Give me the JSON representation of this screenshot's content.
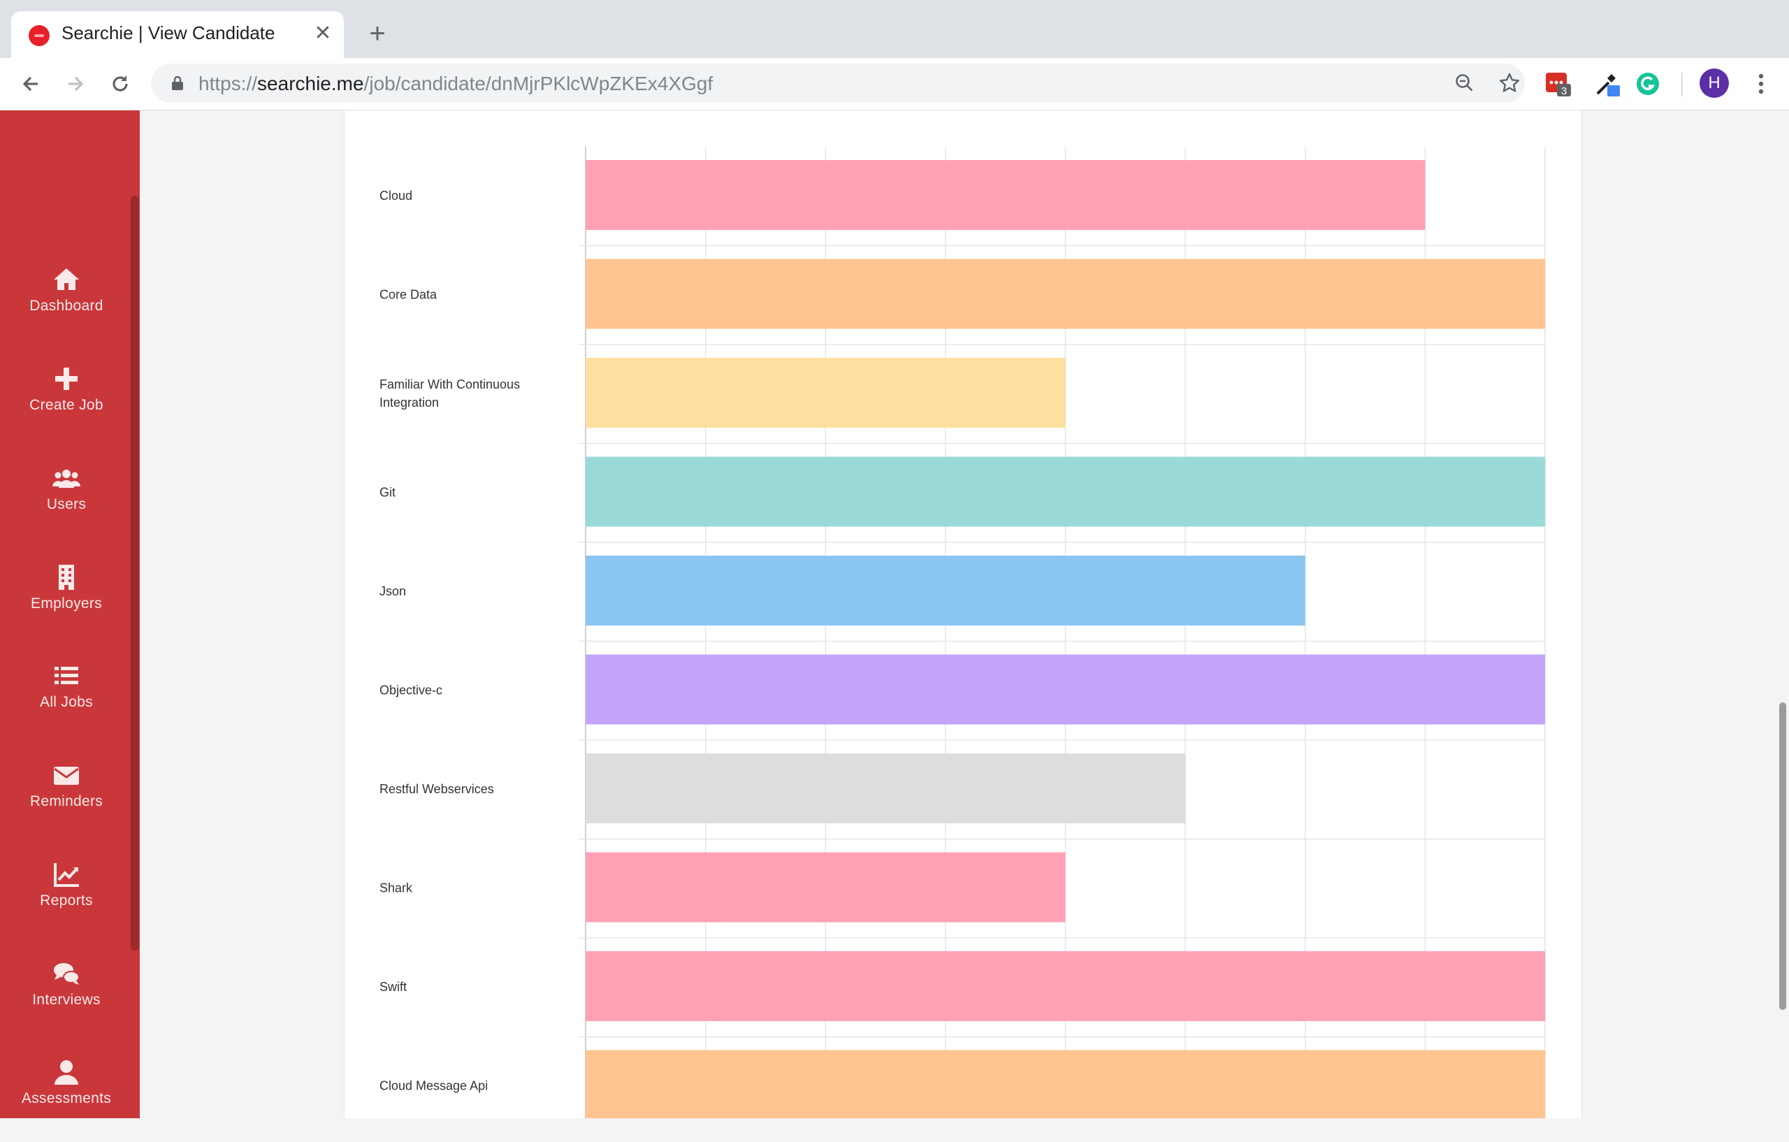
{
  "browser": {
    "tab_title": "Searchie | View Candidate",
    "tab_close": "✕",
    "new_tab": "+",
    "url_scheme": "https://",
    "url_host": "searchie.me",
    "url_path": "/job/candidate/dnMjrPKlcWpZKEx4XGgf",
    "extension_badge": "3",
    "profile_initial": "H"
  },
  "sidebar": {
    "items": [
      {
        "label": "Dashboard",
        "icon": "home-icon"
      },
      {
        "label": "Create Job",
        "icon": "plus-icon"
      },
      {
        "label": "Users",
        "icon": "users-icon"
      },
      {
        "label": "Employers",
        "icon": "building-icon"
      },
      {
        "label": "All Jobs",
        "icon": "list-icon"
      },
      {
        "label": "Reminders",
        "icon": "envelope-icon"
      },
      {
        "label": "Reports",
        "icon": "chart-line-icon"
      },
      {
        "label": "Interviews",
        "icon": "comments-icon"
      },
      {
        "label": "Assessments",
        "icon": "user-icon"
      }
    ]
  },
  "colors": {
    "sidebar": "#c9373a",
    "pink": "#ffa1b5",
    "orange": "#ffc490",
    "yellow": "#ffdfa0",
    "teal": "#99dad8",
    "blue": "#8ac6f2",
    "purple": "#c3a5fc",
    "grey": "#dcdddf"
  },
  "chart_data": {
    "type": "bar",
    "orientation": "horizontal",
    "xlim": [
      0,
      8
    ],
    "grid": true,
    "categories": [
      "Cloud",
      "Core Data",
      "Familiar With Continuous Integration",
      "Git",
      "Json",
      "Objective-c",
      "Restful Webservices",
      "Shark",
      "Swift",
      "Cloud Message Api"
    ],
    "values": [
      7,
      8,
      4,
      8,
      6,
      8,
      5,
      4,
      8,
      8
    ],
    "bar_colors": [
      "#ffa1b5",
      "#ffc490",
      "#ffdfa0",
      "#99dad8",
      "#8ac6f2",
      "#c3a5fc",
      "#dcdddf",
      "#ffa1b5",
      "#ffa1b5",
      "#ffc490"
    ]
  }
}
